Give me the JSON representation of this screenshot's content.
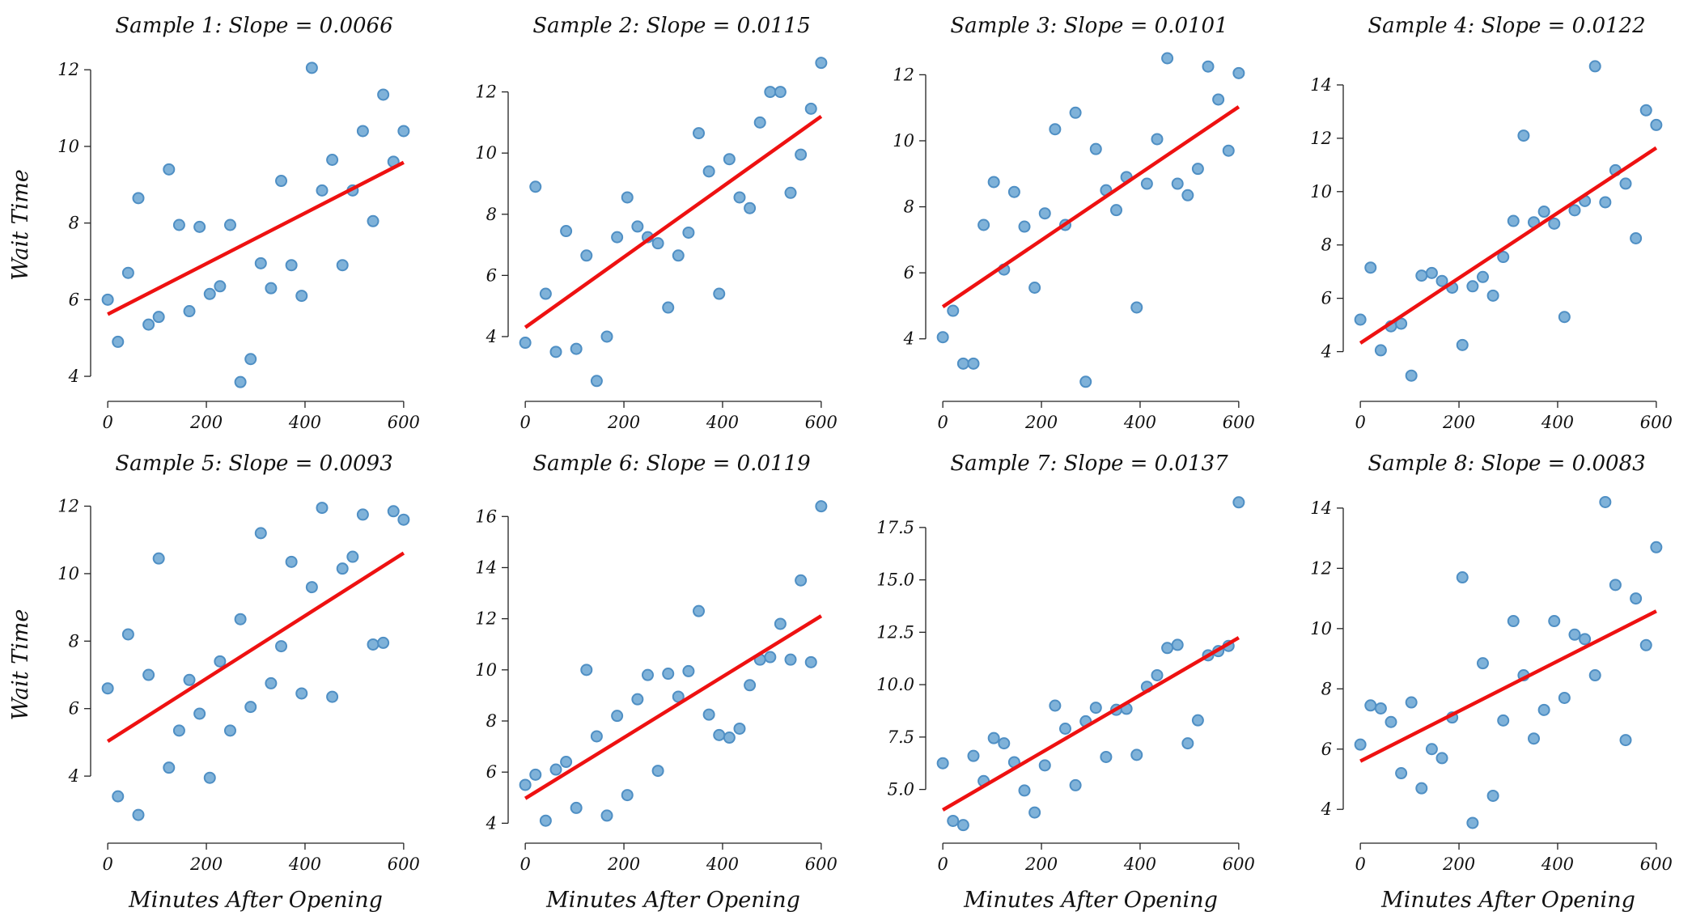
{
  "figure": {
    "x_label": "Minutes After Opening",
    "y_label": "Wait Time"
  },
  "colors": {
    "points": "#7fb2d9",
    "point_edge": "#4f8fc4",
    "fit_line": "#ee1111"
  },
  "chart_data": [
    {
      "type": "scatter",
      "title": "Sample 1: Slope = 0.0066",
      "ylabel": "Wait Time",
      "xlabel": "",
      "xlim": [
        -15,
        615
      ],
      "ylim": [
        3.6,
        12.3
      ],
      "xticks": [
        "0",
        "200",
        "400",
        "600"
      ],
      "xtick_values": [
        0,
        200,
        400,
        600
      ],
      "yticks": [
        "4",
        "6",
        "8",
        "10",
        "12"
      ],
      "ytick_values": [
        4,
        6,
        8,
        10,
        12
      ],
      "x": [
        0,
        20.7,
        41.4,
        62.1,
        82.8,
        103.4,
        124.1,
        144.8,
        165.5,
        186.2,
        206.9,
        227.6,
        248.3,
        269,
        289.7,
        310.3,
        331,
        351.7,
        372.4,
        393.1,
        413.8,
        434.5,
        455.2,
        475.9,
        496.6,
        517.2,
        537.9,
        558.6,
        579.3,
        600
      ],
      "y": [
        6.0,
        4.9,
        6.7,
        8.65,
        5.35,
        5.55,
        9.4,
        7.95,
        5.7,
        7.9,
        6.15,
        6.35,
        7.95,
        3.85,
        4.45,
        6.95,
        6.3,
        9.1,
        6.9,
        6.1,
        12.05,
        8.85,
        9.65,
        6.9,
        8.85,
        10.4,
        8.05,
        11.35,
        9.6,
        10.4
      ],
      "fit": {
        "slope": 0.0066,
        "intercept": 5.62
      }
    },
    {
      "type": "scatter",
      "title": "Sample 2: Slope = 0.0115",
      "ylabel": "",
      "xlabel": "",
      "xlim": [
        -15,
        615
      ],
      "ylim": [
        2.2,
        13.1
      ],
      "xticks": [
        "0",
        "200",
        "400",
        "600"
      ],
      "xtick_values": [
        0,
        200,
        400,
        600
      ],
      "yticks": [
        "4",
        "6",
        "8",
        "10",
        "12"
      ],
      "ytick_values": [
        4,
        6,
        8,
        10,
        12
      ],
      "x": [
        0,
        20.7,
        41.4,
        62.1,
        82.8,
        103.4,
        124.1,
        144.8,
        165.5,
        186.2,
        206.9,
        227.6,
        248.3,
        269,
        289.7,
        310.3,
        331,
        351.7,
        372.4,
        393.1,
        413.8,
        434.5,
        455.2,
        475.9,
        496.6,
        517.2,
        537.9,
        558.6,
        579.3,
        600
      ],
      "y": [
        3.8,
        8.9,
        5.4,
        3.5,
        7.45,
        3.6,
        6.65,
        2.55,
        4.0,
        7.25,
        8.55,
        7.6,
        7.25,
        7.05,
        4.95,
        6.65,
        7.4,
        10.65,
        9.4,
        5.4,
        9.8,
        8.55,
        8.2,
        11.0,
        12.0,
        12.0,
        8.7,
        9.95,
        11.45,
        12.95
      ],
      "fit": {
        "slope": 0.0115,
        "intercept": 4.3
      }
    },
    {
      "type": "scatter",
      "title": "Sample 3: Slope = 0.0101",
      "ylabel": "",
      "xlabel": "",
      "xlim": [
        -15,
        615
      ],
      "ylim": [
        2.4,
        12.5
      ],
      "xticks": [
        "0",
        "200",
        "400",
        "600"
      ],
      "xtick_values": [
        0,
        200,
        400,
        600
      ],
      "yticks": [
        "4",
        "6",
        "8",
        "10",
        "12"
      ],
      "ytick_values": [
        4,
        6,
        8,
        10,
        12
      ],
      "x": [
        0,
        20.7,
        41.4,
        62.1,
        82.8,
        103.4,
        124.1,
        144.8,
        165.5,
        186.2,
        206.9,
        227.6,
        248.3,
        269,
        289.7,
        310.3,
        331,
        351.7,
        372.4,
        393.1,
        413.8,
        434.5,
        455.2,
        475.9,
        496.6,
        517.2,
        537.9,
        558.6,
        579.3,
        600
      ],
      "y": [
        4.05,
        4.85,
        3.25,
        3.25,
        7.45,
        8.75,
        6.1,
        8.45,
        7.4,
        5.55,
        7.8,
        10.35,
        7.45,
        10.85,
        2.7,
        9.75,
        8.5,
        7.9,
        8.9,
        4.95,
        8.7,
        10.05,
        12.5,
        8.7,
        8.35,
        9.15,
        12.25,
        11.25,
        9.7,
        12.05
      ],
      "fit": {
        "slope": 0.0101,
        "intercept": 4.97
      }
    },
    {
      "type": "scatter",
      "title": "Sample 4: Slope = 0.0122",
      "ylabel": "",
      "xlabel": "",
      "xlim": [
        -15,
        615
      ],
      "ylim": [
        2.5,
        15.0
      ],
      "xticks": [
        "0",
        "200",
        "400",
        "600"
      ],
      "xtick_values": [
        0,
        200,
        400,
        600
      ],
      "yticks": [
        "4",
        "6",
        "8",
        "10",
        "12",
        "14"
      ],
      "ytick_values": [
        4,
        6,
        8,
        10,
        12,
        14
      ],
      "x": [
        0,
        20.7,
        41.4,
        62.1,
        82.8,
        103.4,
        124.1,
        144.8,
        165.5,
        186.2,
        206.9,
        227.6,
        248.3,
        269,
        289.7,
        310.3,
        331,
        351.7,
        372.4,
        393.1,
        413.8,
        434.5,
        455.2,
        475.9,
        496.6,
        517.2,
        537.9,
        558.6,
        579.3,
        600
      ],
      "y": [
        5.2,
        7.15,
        4.05,
        4.95,
        5.05,
        3.1,
        6.85,
        6.95,
        6.65,
        6.4,
        4.25,
        6.45,
        6.8,
        6.1,
        7.55,
        8.9,
        12.1,
        8.85,
        9.25,
        8.8,
        5.3,
        9.3,
        9.65,
        14.7,
        9.6,
        10.8,
        10.3,
        8.25,
        13.05,
        12.5
      ],
      "fit": {
        "slope": 0.0122,
        "intercept": 4.32
      }
    },
    {
      "type": "scatter",
      "title": "Sample 5: Slope = 0.0093",
      "ylabel": "Wait Time",
      "xlabel": "Minutes After Opening",
      "xlim": [
        -15,
        615
      ],
      "ylim": [
        2.3,
        12.3
      ],
      "xticks": [
        "0",
        "200",
        "400",
        "600"
      ],
      "xtick_values": [
        0,
        200,
        400,
        600
      ],
      "yticks": [
        "4",
        "6",
        "8",
        "10",
        "12"
      ],
      "ytick_values": [
        4,
        6,
        8,
        10,
        12
      ],
      "x": [
        0,
        20.7,
        41.4,
        62.1,
        82.8,
        103.4,
        124.1,
        144.8,
        165.5,
        186.2,
        206.9,
        227.6,
        248.3,
        269,
        289.7,
        310.3,
        331,
        351.7,
        372.4,
        393.1,
        413.8,
        434.5,
        455.2,
        475.9,
        496.6,
        517.2,
        537.9,
        558.6,
        579.3,
        600
      ],
      "y": [
        6.6,
        3.4,
        8.2,
        2.85,
        7.0,
        10.45,
        4.25,
        5.35,
        6.85,
        5.85,
        3.95,
        7.4,
        5.35,
        8.65,
        6.05,
        11.2,
        6.75,
        7.85,
        10.35,
        6.45,
        9.6,
        11.95,
        6.35,
        10.15,
        10.5,
        11.75,
        7.9,
        7.95,
        11.85,
        11.6
      ],
      "fit": {
        "slope": 0.0093,
        "intercept": 5.03
      }
    },
    {
      "type": "scatter",
      "title": "Sample 6: Slope = 0.0119",
      "ylabel": "",
      "xlabel": "Minutes After Opening",
      "xlim": [
        -15,
        615
      ],
      "ylim": [
        3.6,
        16.8
      ],
      "xticks": [
        "0",
        "200",
        "400",
        "600"
      ],
      "xtick_values": [
        0,
        200,
        400,
        600
      ],
      "yticks": [
        "4",
        "6",
        "8",
        "10",
        "12",
        "14",
        "16"
      ],
      "ytick_values": [
        4,
        6,
        8,
        10,
        12,
        14,
        16
      ],
      "x": [
        0,
        20.7,
        41.4,
        62.1,
        82.8,
        103.4,
        124.1,
        144.8,
        165.5,
        186.2,
        206.9,
        227.6,
        248.3,
        269,
        289.7,
        310.3,
        331,
        351.7,
        372.4,
        393.1,
        413.8,
        434.5,
        455.2,
        475.9,
        496.6,
        517.2,
        537.9,
        558.6,
        579.3,
        600
      ],
      "y": [
        5.5,
        5.9,
        4.1,
        6.1,
        6.4,
        4.6,
        10.0,
        7.4,
        4.3,
        8.2,
        5.1,
        8.85,
        9.8,
        6.05,
        9.85,
        8.95,
        9.95,
        12.3,
        8.25,
        7.45,
        7.35,
        7.7,
        9.4,
        10.4,
        10.5,
        11.8,
        10.4,
        13.5,
        10.3,
        16.4
      ],
      "fit": {
        "slope": 0.0119,
        "intercept": 4.97
      }
    },
    {
      "type": "scatter",
      "title": "Sample 7: Slope = 0.0137",
      "ylabel": "",
      "xlabel": "Minutes After Opening",
      "xlim": [
        -15,
        615
      ],
      "ylim": [
        2.9,
        19.0
      ],
      "xticks": [
        "0",
        "200",
        "400",
        "600"
      ],
      "xtick_values": [
        0,
        200,
        400,
        600
      ],
      "yticks": [
        "5.0",
        "7.5",
        "10.0",
        "12.5",
        "15.0",
        "17.5"
      ],
      "ytick_values": [
        5,
        7.5,
        10,
        12.5,
        15,
        17.5
      ],
      "x": [
        0,
        20.7,
        41.4,
        62.1,
        82.8,
        103.4,
        124.1,
        144.8,
        165.5,
        186.2,
        206.9,
        227.6,
        248.3,
        269,
        289.7,
        310.3,
        331,
        351.7,
        372.4,
        393.1,
        413.8,
        434.5,
        455.2,
        475.9,
        496.6,
        517.2,
        537.9,
        558.6,
        579.3,
        600
      ],
      "y": [
        6.25,
        3.5,
        3.3,
        6.6,
        5.4,
        7.45,
        7.2,
        6.3,
        4.95,
        3.9,
        6.15,
        9.0,
        7.9,
        5.2,
        8.25,
        8.9,
        6.55,
        8.8,
        8.85,
        6.65,
        9.9,
        10.45,
        11.75,
        11.9,
        7.2,
        8.3,
        11.4,
        11.6,
        11.85,
        18.7
      ],
      "fit": {
        "slope": 0.0137,
        "intercept": 4.02
      }
    },
    {
      "type": "scatter",
      "title": "Sample 8: Slope = 0.0083",
      "ylabel": "",
      "xlabel": "Minutes After Opening",
      "xlim": [
        -15,
        615
      ],
      "ylim": [
        3.2,
        14.4
      ],
      "xticks": [
        "0",
        "200",
        "400",
        "600"
      ],
      "xtick_values": [
        0,
        200,
        400,
        600
      ],
      "yticks": [
        "4",
        "6",
        "8",
        "10",
        "12",
        "14"
      ],
      "ytick_values": [
        4,
        6,
        8,
        10,
        12,
        14
      ],
      "x": [
        0,
        20.7,
        41.4,
        62.1,
        82.8,
        103.4,
        124.1,
        144.8,
        165.5,
        186.2,
        206.9,
        227.6,
        248.3,
        269,
        289.7,
        310.3,
        331,
        351.7,
        372.4,
        393.1,
        413.8,
        434.5,
        455.2,
        475.9,
        496.6,
        517.2,
        537.9,
        558.6,
        579.3,
        600
      ],
      "y": [
        6.15,
        7.45,
        7.35,
        6.9,
        5.2,
        7.55,
        4.7,
        6.0,
        5.7,
        7.05,
        11.7,
        3.55,
        8.85,
        4.45,
        6.95,
        10.25,
        8.45,
        6.35,
        7.3,
        10.25,
        7.7,
        9.8,
        9.65,
        8.45,
        14.2,
        11.45,
        6.3,
        11.0,
        9.45,
        12.7
      ],
      "fit": {
        "slope": 0.0083,
        "intercept": 5.6
      }
    }
  ]
}
